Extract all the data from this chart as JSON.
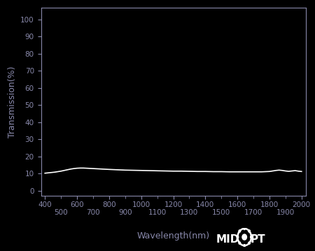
{
  "background_color": "#000000",
  "axes_background_color": "#000000",
  "line_color": "#ffffff",
  "tick_color": "#8888aa",
  "label_color": "#8888aa",
  "xlabel": "Wavelength(nm)",
  "ylabel": "Transmission(%)",
  "xlim": [
    375,
    2025
  ],
  "ylim": [
    -3,
    107
  ],
  "yticks": [
    0,
    10,
    20,
    30,
    40,
    50,
    60,
    70,
    80,
    90,
    100
  ],
  "xticks_row1": [
    400,
    600,
    800,
    1000,
    1200,
    1400,
    1600,
    1800,
    2000
  ],
  "xticks_row2": [
    500,
    700,
    900,
    1100,
    1300,
    1500,
    1700,
    1900
  ],
  "wavelengths": [
    400,
    420,
    440,
    460,
    480,
    500,
    520,
    540,
    560,
    580,
    600,
    620,
    640,
    660,
    680,
    700,
    720,
    740,
    760,
    780,
    800,
    850,
    900,
    950,
    1000,
    1050,
    1100,
    1150,
    1200,
    1250,
    1300,
    1350,
    1400,
    1450,
    1500,
    1550,
    1600,
    1650,
    1700,
    1750,
    1800,
    1820,
    1840,
    1860,
    1880,
    1900,
    1920,
    1940,
    1960,
    1980,
    2000
  ],
  "transmission": [
    10.2,
    10.4,
    10.6,
    10.8,
    11.1,
    11.4,
    11.8,
    12.2,
    12.6,
    12.9,
    13.1,
    13.2,
    13.2,
    13.1,
    13.0,
    12.9,
    12.8,
    12.7,
    12.6,
    12.5,
    12.4,
    12.2,
    12.0,
    11.9,
    11.8,
    11.7,
    11.6,
    11.5,
    11.4,
    11.4,
    11.3,
    11.2,
    11.2,
    11.1,
    11.1,
    11.0,
    11.0,
    11.0,
    11.0,
    11.0,
    11.2,
    11.5,
    11.8,
    12.0,
    11.8,
    11.5,
    11.3,
    11.5,
    11.7,
    11.4,
    11.2
  ],
  "line_width": 1.2,
  "tick_fontsize": 7.5,
  "label_fontsize": 9
}
